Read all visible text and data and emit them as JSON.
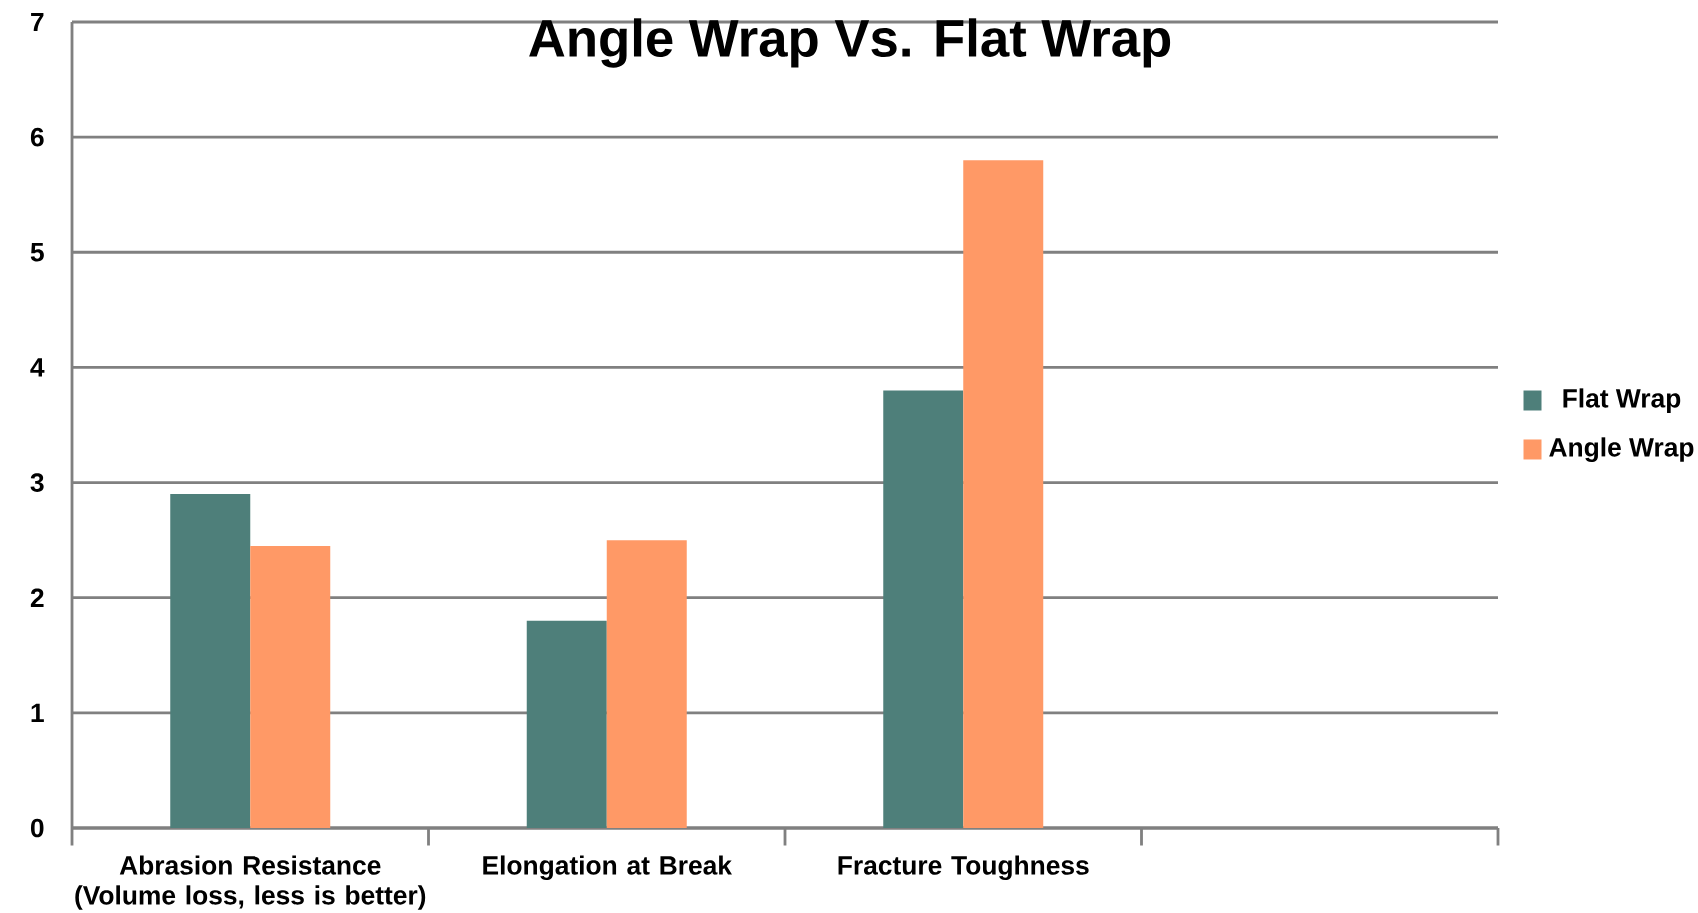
{
  "chart_data": {
    "type": "bar",
    "title": "Angle Wrap Vs. Flat Wrap",
    "categories": [
      "Abrasion Resistance (Volume loss, less is better)",
      "Elongation at Break",
      "Fracture Toughness",
      null
    ],
    "series": [
      {
        "name": "Flat Wrap",
        "color": "#4e7f7a",
        "values": [
          2.9,
          1.8,
          3.8,
          null
        ]
      },
      {
        "name": "Angle Wrap",
        "color": "#ff9966",
        "values": [
          2.45,
          2.5,
          5.8,
          null
        ]
      }
    ],
    "ylim": [
      0,
      7
    ],
    "yticks": [
      0,
      1,
      2,
      3,
      4,
      5,
      6,
      7
    ],
    "grid": "y",
    "legend": "right"
  }
}
